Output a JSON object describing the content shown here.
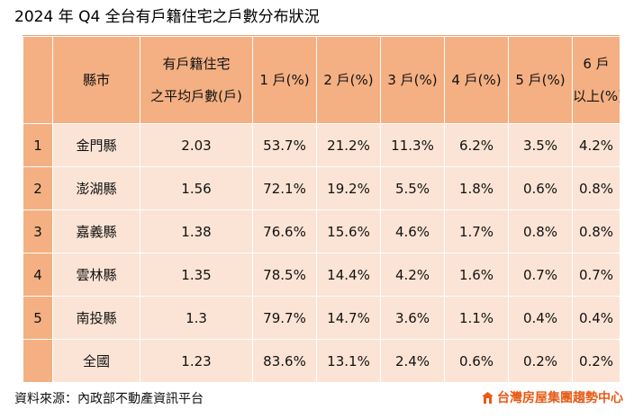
{
  "title": "2024 年 Q4 全台有戶籍住宅之戶數分布狀況",
  "table": {
    "headers": {
      "index": "",
      "city": "縣市",
      "avg_line1": "有戶籍住宅",
      "avg_line2": "之平均戶數(戶)",
      "h1": "1 戶(%)",
      "h2": "2 戶(%)",
      "h3": "3 戶(%)",
      "h4": "4 戶(%)",
      "h5": "5 戶(%)",
      "h6_line1": "6 戶",
      "h6_line2": "以上(%)"
    },
    "rows": [
      {
        "rank": "1",
        "city": "金門縣",
        "avg": "2.03",
        "p1": "53.7%",
        "p2": "21.2%",
        "p3": "11.3%",
        "p4": "6.2%",
        "p5": "3.5%",
        "p6": "4.2%"
      },
      {
        "rank": "2",
        "city": "澎湖縣",
        "avg": "1.56",
        "p1": "72.1%",
        "p2": "19.2%",
        "p3": "5.5%",
        "p4": "1.8%",
        "p5": "0.6%",
        "p6": "0.8%"
      },
      {
        "rank": "3",
        "city": "嘉義縣",
        "avg": "1.38",
        "p1": "76.6%",
        "p2": "15.6%",
        "p3": "4.6%",
        "p4": "1.7%",
        "p5": "0.8%",
        "p6": "0.8%"
      },
      {
        "rank": "4",
        "city": "雲林縣",
        "avg": "1.35",
        "p1": "78.5%",
        "p2": "14.4%",
        "p3": "4.2%",
        "p4": "1.6%",
        "p5": "0.7%",
        "p6": "0.7%"
      },
      {
        "rank": "5",
        "city": "南投縣",
        "avg": "1.3",
        "p1": "79.7%",
        "p2": "14.7%",
        "p3": "3.6%",
        "p4": "1.1%",
        "p5": "0.4%",
        "p6": "0.4%"
      }
    ],
    "total": {
      "rank": "",
      "city": "全國",
      "avg": "1.23",
      "p1": "83.6%",
      "p2": "13.1%",
      "p3": "2.4%",
      "p4": "0.6%",
      "p5": "0.2%",
      "p6": "0.2%"
    }
  },
  "source": "資料來源：內政部不動產資訊平台",
  "brand": {
    "name": "台灣房屋集團趨勢中心",
    "color": "#e85a16",
    "icon": "house-logo-icon"
  },
  "colors": {
    "header_bg": "#f4b082",
    "cell_bg": "#fbe4d5"
  }
}
